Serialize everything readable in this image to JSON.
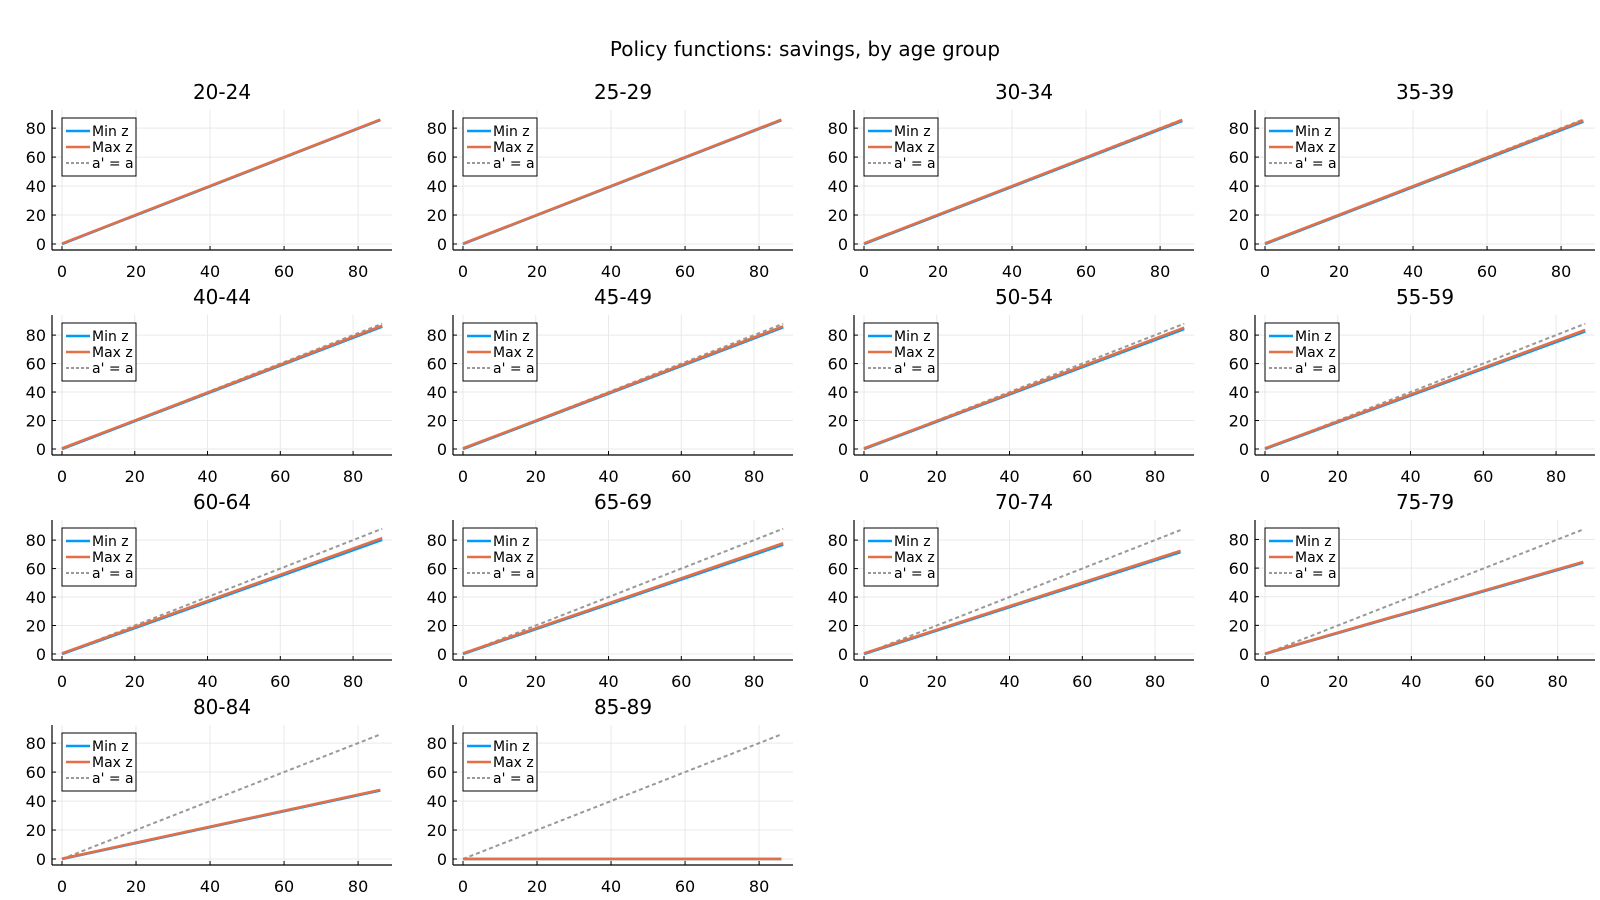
{
  "figure": {
    "title": "Policy functions: savings, by age group"
  },
  "colors": {
    "min_z": "#009af9",
    "max_z": "#e26f46",
    "identity": "#999999",
    "grid": "#e9e9e9",
    "axis": "#000000"
  },
  "legend_labels": [
    "Min z",
    "Max z",
    "a' = a"
  ],
  "chart_data": [
    {
      "type": "line",
      "title": "20-24",
      "xticks": [
        "0",
        "20",
        "40",
        "60",
        "80"
      ],
      "yticks": [
        "0",
        "20",
        "40",
        "60",
        "80"
      ],
      "xlim": [
        0,
        87
      ],
      "ylim": [
        0,
        87
      ],
      "legend_position": "top-left",
      "grid": true,
      "series": [
        {
          "name": "Min z",
          "x": [
            0,
            86
          ],
          "y": [
            0,
            85.6
          ]
        },
        {
          "name": "Max z",
          "x": [
            0,
            86
          ],
          "y": [
            0.3,
            85.9
          ]
        },
        {
          "name": "a' = a",
          "x": [
            0,
            86
          ],
          "y": [
            0,
            86
          ]
        }
      ]
    },
    {
      "type": "line",
      "title": "25-29",
      "xticks": [
        "0",
        "20",
        "40",
        "60",
        "80"
      ],
      "yticks": [
        "0",
        "20",
        "40",
        "60",
        "80"
      ],
      "xlim": [
        0,
        87
      ],
      "ylim": [
        0,
        87
      ],
      "legend_position": "top-left",
      "grid": true,
      "series": [
        {
          "name": "Min z",
          "x": [
            0,
            86
          ],
          "y": [
            0,
            85.4
          ]
        },
        {
          "name": "Max z",
          "x": [
            0,
            86
          ],
          "y": [
            0.3,
            85.8
          ]
        },
        {
          "name": "a' = a",
          "x": [
            0,
            86
          ],
          "y": [
            0,
            86
          ]
        }
      ]
    },
    {
      "type": "line",
      "title": "30-34",
      "xticks": [
        "0",
        "20",
        "40",
        "60",
        "80"
      ],
      "yticks": [
        "0",
        "20",
        "40",
        "60",
        "80"
      ],
      "xlim": [
        0,
        87
      ],
      "ylim": [
        0,
        87
      ],
      "legend_position": "top-left",
      "grid": true,
      "series": [
        {
          "name": "Min z",
          "x": [
            0,
            86
          ],
          "y": [
            0,
            85
          ]
        },
        {
          "name": "Max z",
          "x": [
            0,
            86
          ],
          "y": [
            0.4,
            85.6
          ]
        },
        {
          "name": "a' = a",
          "x": [
            0,
            86
          ],
          "y": [
            0,
            86
          ]
        }
      ]
    },
    {
      "type": "line",
      "title": "35-39",
      "xticks": [
        "0",
        "20",
        "40",
        "60",
        "80"
      ],
      "yticks": [
        "0",
        "20",
        "40",
        "60",
        "80"
      ],
      "xlim": [
        0,
        87
      ],
      "ylim": [
        0,
        87
      ],
      "legend_position": "top-left",
      "grid": true,
      "series": [
        {
          "name": "Min z",
          "x": [
            0,
            86
          ],
          "y": [
            0,
            84.5
          ]
        },
        {
          "name": "Max z",
          "x": [
            0,
            86
          ],
          "y": [
            0.4,
            85.3
          ]
        },
        {
          "name": "a' = a",
          "x": [
            0,
            86
          ],
          "y": [
            0,
            86
          ]
        }
      ]
    },
    {
      "type": "line",
      "title": "40-44",
      "xticks": [
        "0",
        "20",
        "40",
        "60",
        "80"
      ],
      "yticks": [
        "0",
        "20",
        "40",
        "60",
        "80"
      ],
      "xlim": [
        0,
        88.5
      ],
      "ylim": [
        0,
        88.5
      ],
      "legend_position": "top-left",
      "grid": true,
      "series": [
        {
          "name": "Min z",
          "x": [
            0,
            88
          ],
          "y": [
            0,
            86
          ]
        },
        {
          "name": "Max z",
          "x": [
            0,
            88
          ],
          "y": [
            0.4,
            86.6
          ]
        },
        {
          "name": "a' = a",
          "x": [
            0,
            88
          ],
          "y": [
            0,
            88
          ]
        }
      ]
    },
    {
      "type": "line",
      "title": "45-49",
      "xticks": [
        "0",
        "20",
        "40",
        "60",
        "80"
      ],
      "yticks": [
        "0",
        "20",
        "40",
        "60",
        "80"
      ],
      "xlim": [
        0,
        88.5
      ],
      "ylim": [
        0,
        88.5
      ],
      "legend_position": "top-left",
      "grid": true,
      "series": [
        {
          "name": "Min z",
          "x": [
            0,
            88
          ],
          "y": [
            0,
            85.5
          ]
        },
        {
          "name": "Max z",
          "x": [
            0,
            88
          ],
          "y": [
            0.4,
            86.2
          ]
        },
        {
          "name": "a' = a",
          "x": [
            0,
            88
          ],
          "y": [
            0,
            88
          ]
        }
      ]
    },
    {
      "type": "line",
      "title": "50-54",
      "xticks": [
        "0",
        "20",
        "40",
        "60",
        "80"
      ],
      "yticks": [
        "0",
        "20",
        "40",
        "60",
        "80"
      ],
      "xlim": [
        0,
        88.5
      ],
      "ylim": [
        0,
        88.5
      ],
      "legend_position": "top-left",
      "grid": true,
      "series": [
        {
          "name": "Min z",
          "x": [
            0,
            88
          ],
          "y": [
            0,
            84.3
          ]
        },
        {
          "name": "Max z",
          "x": [
            0,
            88
          ],
          "y": [
            0.4,
            85.2
          ]
        },
        {
          "name": "a' = a",
          "x": [
            0,
            88
          ],
          "y": [
            0,
            88
          ]
        }
      ]
    },
    {
      "type": "line",
      "title": "55-59",
      "xticks": [
        "0",
        "20",
        "40",
        "60",
        "80"
      ],
      "yticks": [
        "0",
        "20",
        "40",
        "60",
        "80"
      ],
      "xlim": [
        0,
        88.5
      ],
      "ylim": [
        0,
        88.5
      ],
      "legend_position": "top-left",
      "grid": true,
      "series": [
        {
          "name": "Min z",
          "x": [
            0,
            88
          ],
          "y": [
            0,
            82.6
          ]
        },
        {
          "name": "Max z",
          "x": [
            0,
            88
          ],
          "y": [
            0.4,
            83.6
          ]
        },
        {
          "name": "a' = a",
          "x": [
            0,
            88
          ],
          "y": [
            0,
            88
          ]
        }
      ]
    },
    {
      "type": "line",
      "title": "60-64",
      "xticks": [
        "0",
        "20",
        "40",
        "60",
        "80"
      ],
      "yticks": [
        "0",
        "20",
        "40",
        "60",
        "80"
      ],
      "xlim": [
        0,
        88.5
      ],
      "ylim": [
        0,
        88.5
      ],
      "legend_position": "top-left",
      "grid": true,
      "series": [
        {
          "name": "Min z",
          "x": [
            0,
            88
          ],
          "y": [
            0,
            80.2
          ]
        },
        {
          "name": "Max z",
          "x": [
            0,
            88
          ],
          "y": [
            0.4,
            81.4
          ]
        },
        {
          "name": "a' = a",
          "x": [
            0,
            88
          ],
          "y": [
            0,
            88
          ]
        }
      ]
    },
    {
      "type": "line",
      "title": "65-69",
      "xticks": [
        "0",
        "20",
        "40",
        "60",
        "80"
      ],
      "yticks": [
        "0",
        "20",
        "40",
        "60",
        "80"
      ],
      "xlim": [
        0,
        88.5
      ],
      "ylim": [
        0,
        88.5
      ],
      "legend_position": "top-left",
      "grid": true,
      "series": [
        {
          "name": "Min z",
          "x": [
            0,
            88
          ],
          "y": [
            0,
            76.8
          ]
        },
        {
          "name": "Max z",
          "x": [
            0,
            88
          ],
          "y": [
            0.4,
            77.8
          ]
        },
        {
          "name": "a' = a",
          "x": [
            0,
            88
          ],
          "y": [
            0,
            88
          ]
        }
      ]
    },
    {
      "type": "line",
      "title": "70-74",
      "xticks": [
        "0",
        "20",
        "40",
        "60",
        "80"
      ],
      "yticks": [
        "0",
        "20",
        "40",
        "60",
        "80"
      ],
      "xlim": [
        0,
        88.5
      ],
      "ylim": [
        0,
        88.5
      ],
      "legend_position": "top-left",
      "grid": true,
      "series": [
        {
          "name": "Min z",
          "x": [
            0,
            87
          ],
          "y": [
            0,
            71.6
          ]
        },
        {
          "name": "Max z",
          "x": [
            0,
            87
          ],
          "y": [
            0.4,
            72.5
          ]
        },
        {
          "name": "a' = a",
          "x": [
            0,
            87
          ],
          "y": [
            0,
            87
          ]
        }
      ]
    },
    {
      "type": "line",
      "title": "75-79",
      "xticks": [
        "0",
        "20",
        "40",
        "60",
        "80"
      ],
      "yticks": [
        "0",
        "20",
        "40",
        "60",
        "80"
      ],
      "xlim": [
        0,
        88
      ],
      "ylim": [
        0,
        88
      ],
      "legend_position": "top-left",
      "grid": true,
      "series": [
        {
          "name": "Min z",
          "x": [
            0,
            87
          ],
          "y": [
            0,
            63.8
          ]
        },
        {
          "name": "Max z",
          "x": [
            0,
            87
          ],
          "y": [
            0.3,
            64.3
          ]
        },
        {
          "name": "a' = a",
          "x": [
            0,
            87
          ],
          "y": [
            0,
            87
          ]
        }
      ]
    },
    {
      "type": "line",
      "title": "80-84",
      "xticks": [
        "0",
        "20",
        "40",
        "60",
        "80"
      ],
      "yticks": [
        "0",
        "20",
        "40",
        "60",
        "80"
      ],
      "xlim": [
        0,
        87
      ],
      "ylim": [
        0,
        87
      ],
      "legend_position": "top-left",
      "grid": true,
      "series": [
        {
          "name": "Min z",
          "x": [
            0,
            86
          ],
          "y": [
            0,
            47.3
          ]
        },
        {
          "name": "Max z",
          "x": [
            0,
            86
          ],
          "y": [
            0.3,
            47.7
          ]
        },
        {
          "name": "a' = a",
          "x": [
            0,
            86
          ],
          "y": [
            0,
            86
          ]
        }
      ]
    },
    {
      "type": "line",
      "title": "85-89",
      "xticks": [
        "0",
        "20",
        "40",
        "60",
        "80"
      ],
      "yticks": [
        "0",
        "20",
        "40",
        "60",
        "80"
      ],
      "xlim": [
        0,
        87
      ],
      "ylim": [
        0,
        87
      ],
      "legend_position": "top-left",
      "grid": true,
      "series": [
        {
          "name": "Min z",
          "x": [
            0,
            86
          ],
          "y": [
            0,
            0
          ]
        },
        {
          "name": "Max z",
          "x": [
            0,
            86
          ],
          "y": [
            0.1,
            0.1
          ]
        },
        {
          "name": "a' = a",
          "x": [
            0,
            86
          ],
          "y": [
            0,
            86
          ]
        }
      ]
    }
  ]
}
